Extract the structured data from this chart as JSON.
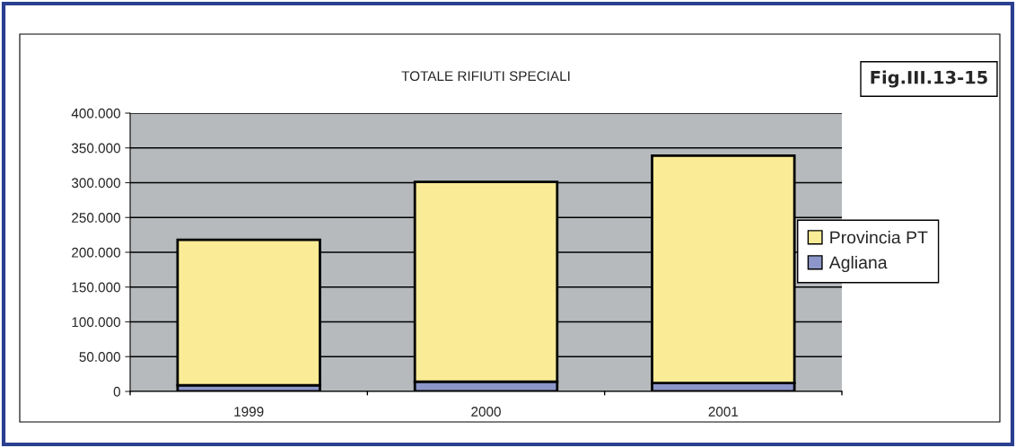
{
  "chart_data": {
    "type": "bar",
    "title": "TOTALE RIFIUTI SPECIALI",
    "annotations": [
      "Fig.III.13-15"
    ],
    "categories": [
      "1999",
      "2000",
      "2001"
    ],
    "stacked": true,
    "series": [
      {
        "name": "Agliana",
        "color": "#8c96c8",
        "values": [
          9000,
          14000,
          12000
        ]
      },
      {
        "name": "Provincia PT",
        "color": "#faeb96",
        "values": [
          209000,
          287000,
          327000
        ]
      }
    ],
    "ylim": [
      0,
      400000
    ],
    "yticks": [
      0,
      {
        "value": 50000,
        "label": "50.000"
      },
      {
        "value": 100000,
        "label": "100.000"
      },
      {
        "value": 150000,
        "label": "150.000"
      },
      {
        "value": 200000,
        "label": "200.000"
      },
      {
        "value": 250000,
        "label": "250.000"
      },
      {
        "value": 300000,
        "label": "300.000"
      },
      {
        "value": 350000,
        "label": "350.000"
      },
      {
        "value": 400000,
        "label": "400.000"
      }
    ],
    "grid": "y",
    "legend": "right"
  }
}
